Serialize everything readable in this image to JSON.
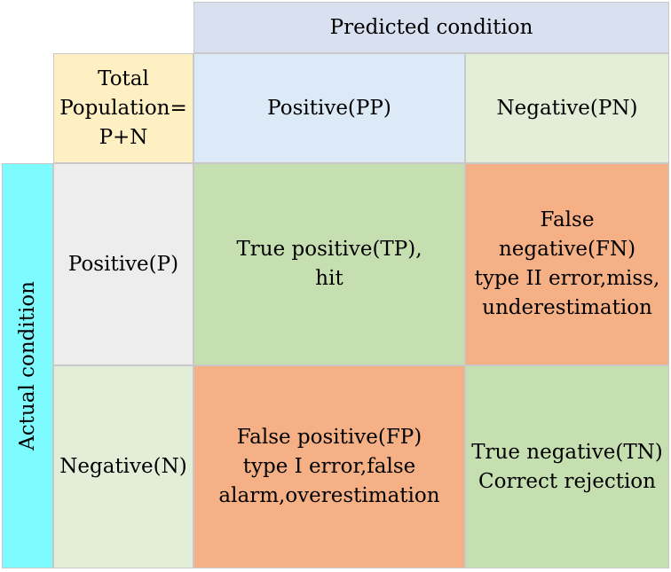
{
  "colors": {
    "predicted_header": "#d9e1f1",
    "total_population": "#fff0c4",
    "predicted_positive": "#dce9f6",
    "predicted_negative": "#e3eed8",
    "actual_header": "#7dfbff",
    "actual_positive": "#ededed",
    "actual_negative": "#e3eed8",
    "correct": "#c6dfb1",
    "error": "#f5b086"
  },
  "predicted_header": "Predicted condition",
  "actual_header": "Actual condition",
  "total_population": [
    "Total",
    "Population=",
    "P+N"
  ],
  "predicted_positive": "Positive(PP)",
  "predicted_negative": "Negative(PN)",
  "actual_positive": "Positive(P)",
  "actual_negative": "Negative(N)",
  "true_positive": [
    "True positive(TP),",
    "hit"
  ],
  "false_negative": [
    "False",
    "negative(FN)",
    "type II error,miss,",
    "underestimation"
  ],
  "false_positive": [
    "False positive(FP)",
    "type I error,false",
    "alarm,overestimation"
  ],
  "true_negative": [
    "True negative(TN)",
    "Correct rejection"
  ]
}
